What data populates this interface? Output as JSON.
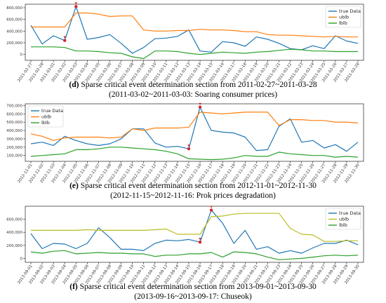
{
  "chart_data": [
    {
      "type": "line",
      "x": [
        "2011-02-27",
        "2011-02-28",
        "2011-03-01",
        "2011-03-02",
        "2011-03-03",
        "2011-03-04",
        "2011-03-05",
        "2011-03-06",
        "2011-03-07",
        "2011-03-08",
        "2011-03-09",
        "2011-03-10",
        "2011-03-11",
        "2011-03-12",
        "2011-03-13",
        "2011-03-14",
        "2011-03-15",
        "2011-03-16",
        "2011-03-17",
        "2011-03-18",
        "2011-03-19",
        "2011-03-20",
        "2011-03-21",
        "2011-03-22",
        "2011-03-23",
        "2011-03-24",
        "2011-03-25",
        "2011-03-26",
        "2011-03-27",
        "2011-03-28"
      ],
      "series": [
        {
          "name": "true Data",
          "color": "#1f77b4",
          "values": [
            500000,
            180000,
            320000,
            240000,
            820000,
            260000,
            290000,
            340000,
            190000,
            20000,
            120000,
            270000,
            280000,
            310000,
            420000,
            60000,
            40000,
            220000,
            200000,
            140000,
            300000,
            260000,
            190000,
            100000,
            80000,
            150000,
            100000,
            320000,
            230000,
            190000
          ]
        },
        {
          "name": "ublb",
          "color": "#ff7f0e",
          "values": [
            470000,
            470000,
            470000,
            470000,
            710000,
            710000,
            690000,
            650000,
            660000,
            660000,
            420000,
            400000,
            400000,
            410000,
            410000,
            430000,
            420000,
            420000,
            410000,
            390000,
            390000,
            340000,
            330000,
            330000,
            320000,
            310000,
            300000,
            310000,
            300000,
            300000
          ]
        },
        {
          "name": "lblb",
          "color": "#2ca02c",
          "values": [
            130000,
            130000,
            130000,
            120000,
            60000,
            60000,
            50000,
            30000,
            20000,
            -40000,
            -70000,
            60000,
            60000,
            50000,
            20000,
            0,
            20000,
            40000,
            30000,
            20000,
            40000,
            50000,
            70000,
            90000,
            80000,
            60000,
            60000,
            50000,
            50000,
            50000
          ]
        }
      ],
      "highlights": [
        {
          "x": "2011-03-02",
          "y": 240000
        },
        {
          "x": "2011-03-03",
          "y": 820000
        }
      ],
      "yticks": [
        0,
        200000,
        400000,
        600000,
        800000
      ],
      "ytick_labels": [
        "0",
        "200,000",
        "400,000",
        "600,000",
        "800,000"
      ],
      "ylim": [
        -100000,
        860000
      ],
      "legend_position": "top-right",
      "grid": false
    },
    {
      "type": "line",
      "x": [
        "2012-11-01",
        "2012-11-02",
        "2012-11-03",
        "2012-11-04",
        "2012-11-05",
        "2012-11-06",
        "2012-11-07",
        "2012-11-08",
        "2012-11-09",
        "2012-11-10",
        "2012-11-11",
        "2012-11-12",
        "2012-11-13",
        "2012-11-14",
        "2012-11-15",
        "2012-11-16",
        "2012-11-17",
        "2012-11-18",
        "2012-11-19",
        "2012-11-20",
        "2012-11-21",
        "2012-11-22",
        "2012-11-23",
        "2012-11-24",
        "2012-11-25",
        "2012-11-26",
        "2012-11-27",
        "2012-11-28",
        "2012-11-29",
        "2012-11-30"
      ],
      "series": [
        {
          "name": "true Data",
          "color": "#1f77b4",
          "values": [
            240000,
            260000,
            220000,
            330000,
            280000,
            240000,
            220000,
            240000,
            300000,
            420000,
            420000,
            250000,
            200000,
            210000,
            180000,
            680000,
            400000,
            380000,
            370000,
            320000,
            160000,
            170000,
            450000,
            540000,
            260000,
            280000,
            190000,
            230000,
            150000,
            260000
          ]
        },
        {
          "name": "ublb",
          "color": "#ff7f0e",
          "values": [
            360000,
            330000,
            280000,
            310000,
            320000,
            320000,
            320000,
            310000,
            320000,
            420000,
            400000,
            430000,
            430000,
            430000,
            440000,
            620000,
            610000,
            600000,
            610000,
            620000,
            620000,
            620000,
            460000,
            530000,
            530000,
            520000,
            520000,
            500000,
            500000,
            490000
          ]
        },
        {
          "name": "lblb",
          "color": "#2ca02c",
          "values": [
            90000,
            100000,
            110000,
            120000,
            170000,
            170000,
            180000,
            200000,
            200000,
            190000,
            180000,
            170000,
            150000,
            120000,
            60000,
            55000,
            50000,
            55000,
            70000,
            100000,
            90000,
            90000,
            140000,
            120000,
            110000,
            100000,
            100000,
            80000,
            90000,
            80000
          ]
        }
      ],
      "highlights": [
        {
          "x": "2012-11-15",
          "y": 180000
        },
        {
          "x": "2012-11-16",
          "y": 680000
        }
      ],
      "yticks": [
        100000,
        200000,
        300000,
        400000,
        500000,
        600000,
        700000
      ],
      "ytick_labels": [
        "100,000",
        "200,000",
        "300,000",
        "400,000",
        "500,000",
        "600,000",
        "700,000"
      ],
      "ylim": [
        30000,
        720000
      ],
      "legend_position": "top-left",
      "grid": false
    },
    {
      "type": "line",
      "x": [
        "2013-09-01",
        "2013-09-02",
        "2013-09-03",
        "2013-09-04",
        "2013-09-05",
        "2013-09-06",
        "2013-09-07",
        "2013-09-08",
        "2013-09-09",
        "2013-09-10",
        "2013-09-11",
        "2013-09-12",
        "2013-09-13",
        "2013-09-14",
        "2013-09-15",
        "2013-09-16",
        "2013-09-17",
        "2013-09-18",
        "2013-09-19",
        "2013-09-20",
        "2013-09-21",
        "2013-09-22",
        "2013-09-23",
        "2013-09-24",
        "2013-09-25",
        "2013-09-26",
        "2013-09-27",
        "2013-09-28",
        "2013-09-29",
        "2013-09-30"
      ],
      "series": [
        {
          "name": "true Data",
          "color": "#1f77b4",
          "values": [
            380000,
            150000,
            230000,
            220000,
            150000,
            230000,
            470000,
            320000,
            140000,
            140000,
            120000,
            230000,
            280000,
            270000,
            290000,
            250000,
            740000,
            540000,
            230000,
            430000,
            140000,
            180000,
            80000,
            120000,
            80000,
            160000,
            230000,
            230000,
            280000,
            210000
          ]
        },
        {
          "name": "ublb",
          "color": "#bcbd22",
          "values": [
            430000,
            430000,
            430000,
            430000,
            430000,
            440000,
            430000,
            430000,
            430000,
            430000,
            430000,
            440000,
            450000,
            370000,
            370000,
            370000,
            640000,
            650000,
            680000,
            690000,
            690000,
            690000,
            690000,
            460000,
            370000,
            360000,
            260000,
            260000,
            270000,
            270000
          ]
        },
        {
          "name": "lblb",
          "color": "#2ca02c",
          "values": [
            100000,
            80000,
            110000,
            120000,
            70000,
            80000,
            90000,
            80000,
            80000,
            70000,
            70000,
            30000,
            50000,
            50000,
            70000,
            70000,
            90000,
            20000,
            100000,
            90000,
            70000,
            20000,
            -20000,
            -10000,
            0,
            20000,
            40000,
            50000,
            40000,
            50000
          ]
        }
      ],
      "highlights": [
        {
          "x": "2013-09-16",
          "y": 250000
        },
        {
          "x": "2013-09-17",
          "y": 740000
        }
      ],
      "yticks": [
        0,
        200000,
        400000,
        600000
      ],
      "ytick_labels": [
        "0",
        "200,000",
        "400,000",
        "600,000"
      ],
      "ylim": [
        -60000,
        800000
      ],
      "legend_position": "top-right",
      "grid": false
    }
  ],
  "captions": [
    {
      "letter": "(d)",
      "line1": "Sparse critical event determination section from 2011-02-27~2011-03-28",
      "line2": "(2011-03-02~2011-03-03: Soaring consumer prices)"
    },
    {
      "letter": "(e)",
      "line1": "Sparse critical event determination section from 2012-11-01~2012-11-30",
      "line2": "(2012-11-15~2012-11-16: Prok prices degradation)"
    },
    {
      "letter": "(f)",
      "line1": "Sparse critical event determination section from 2013-09-01~2013-09-30",
      "line2": "(2013-09-16~2013-09-17: Chuseok)"
    }
  ],
  "marker_color": "#d62728"
}
